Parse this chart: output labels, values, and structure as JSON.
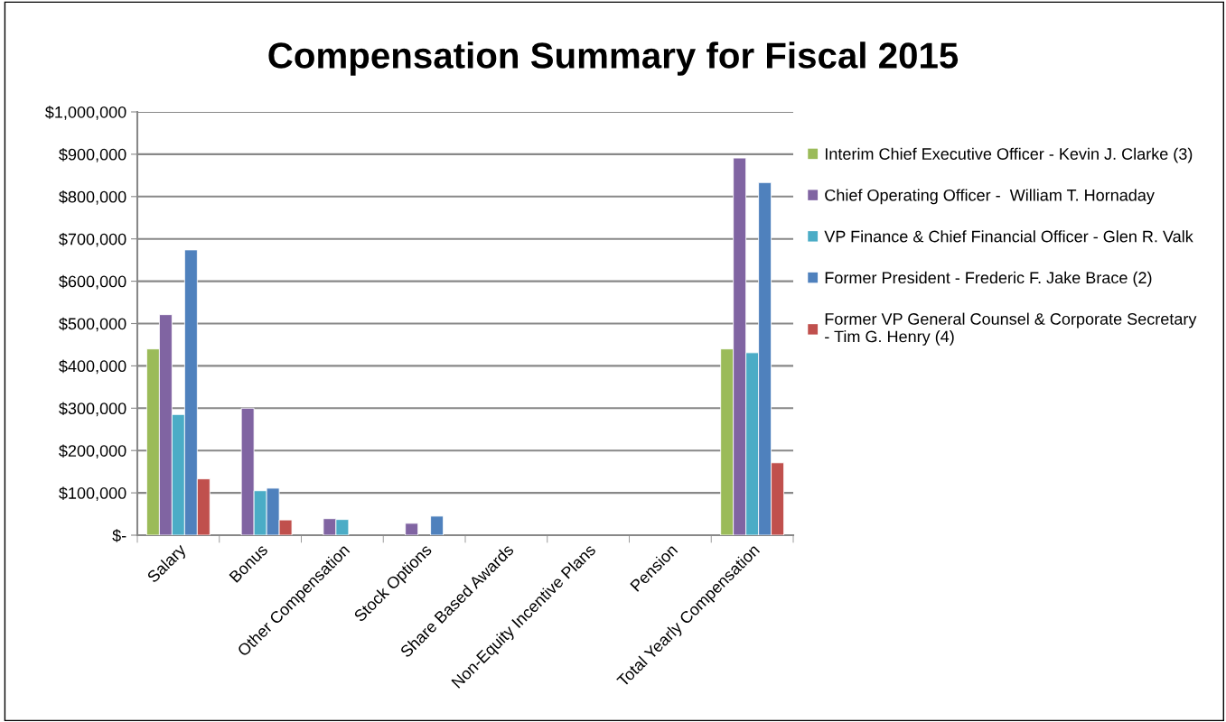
{
  "chart_data": {
    "type": "bar",
    "title": "Compensation Summary for Fiscal 2015",
    "categories": [
      "Salary",
      "Bonus",
      "Other Compensation",
      "Stock Options",
      "Share Based Awards",
      "Non-Equity Incentive Plans",
      "Pension",
      "Total Yearly Compensation"
    ],
    "series": [
      {
        "name": "Interim Chief Executive Officer - Kevin J. Clarke (3)",
        "color": "#9bbb59",
        "values": [
          440000,
          null,
          null,
          null,
          null,
          null,
          null,
          440000
        ]
      },
      {
        "name": "Chief Operating Officer -  William T. Hornaday",
        "color": "#8064a2",
        "values": [
          521000,
          300000,
          39000,
          28000,
          null,
          null,
          null,
          891000
        ]
      },
      {
        "name": "VP Finance & Chief Financial Officer - Glen R. Valk",
        "color": "#4bacc6",
        "values": [
          285000,
          105000,
          37000,
          null,
          null,
          null,
          null,
          431000
        ]
      },
      {
        "name": "Former President - Frederic F. Jake Brace (2)",
        "color": "#4f81bd",
        "values": [
          674000,
          111000,
          null,
          45000,
          null,
          null,
          null,
          833000
        ]
      },
      {
        "name": "Former VP General Counsel & Corporate Secretary\n- Tim G. Henry (4)",
        "color": "#c0504d",
        "values": [
          133000,
          36000,
          null,
          null,
          null,
          null,
          null,
          171000
        ]
      }
    ],
    "ylim": [
      0,
      1000000
    ],
    "yticks": [
      {
        "value": 0,
        "label": "$-"
      },
      {
        "value": 100000,
        "label": "$100,000"
      },
      {
        "value": 200000,
        "label": "$200,000"
      },
      {
        "value": 300000,
        "label": "$300,000"
      },
      {
        "value": 400000,
        "label": "$400,000"
      },
      {
        "value": 500000,
        "label": "$500,000"
      },
      {
        "value": 600000,
        "label": "$600,000"
      },
      {
        "value": 700000,
        "label": "$700,000"
      },
      {
        "value": 800000,
        "label": "$800,000"
      },
      {
        "value": 900000,
        "label": "$900,000"
      },
      {
        "value": 1000000,
        "label": "$1,000,000"
      }
    ],
    "grid": "y",
    "legend": "right"
  }
}
